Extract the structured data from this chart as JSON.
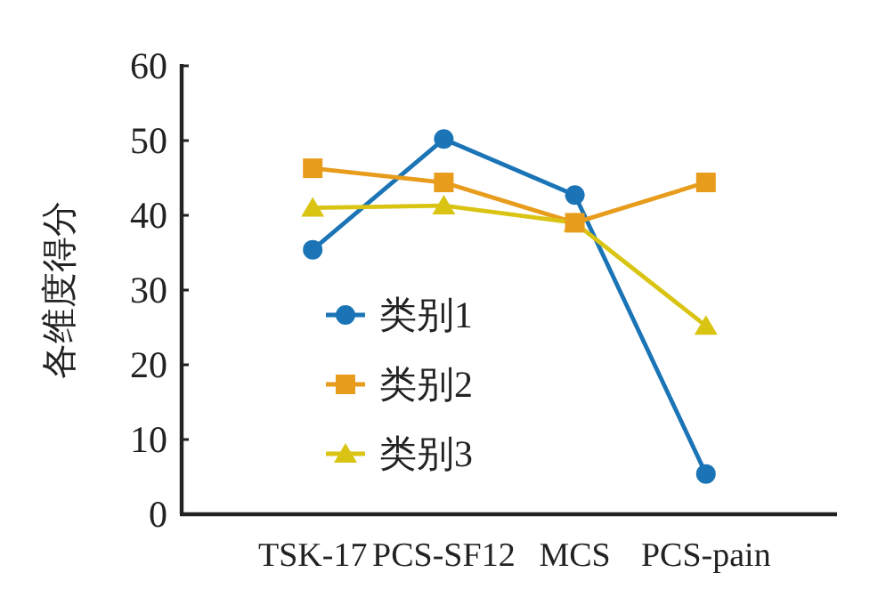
{
  "chart_data": {
    "type": "line",
    "ylabel": "各维度得分",
    "categories": [
      "TSK-17",
      "PCS-SF12",
      "MCS",
      "PCS-pain"
    ],
    "series": [
      {
        "name": "类别1",
        "color": "#1a74b6",
        "marker": "circle",
        "values": [
          35.4,
          50.2,
          42.7,
          5.4
        ]
      },
      {
        "name": "类别2",
        "color": "#e89c1c",
        "marker": "square",
        "values": [
          46.3,
          44.4,
          39.0,
          44.4
        ]
      },
      {
        "name": "类别3",
        "color": "#d9c414",
        "marker": "triangle",
        "values": [
          41.0,
          41.3,
          39.0,
          25.2
        ]
      }
    ],
    "ylim": [
      0,
      60
    ],
    "yticks": [
      0,
      10,
      20,
      30,
      40,
      50,
      60
    ],
    "legend": "bottom left"
  }
}
